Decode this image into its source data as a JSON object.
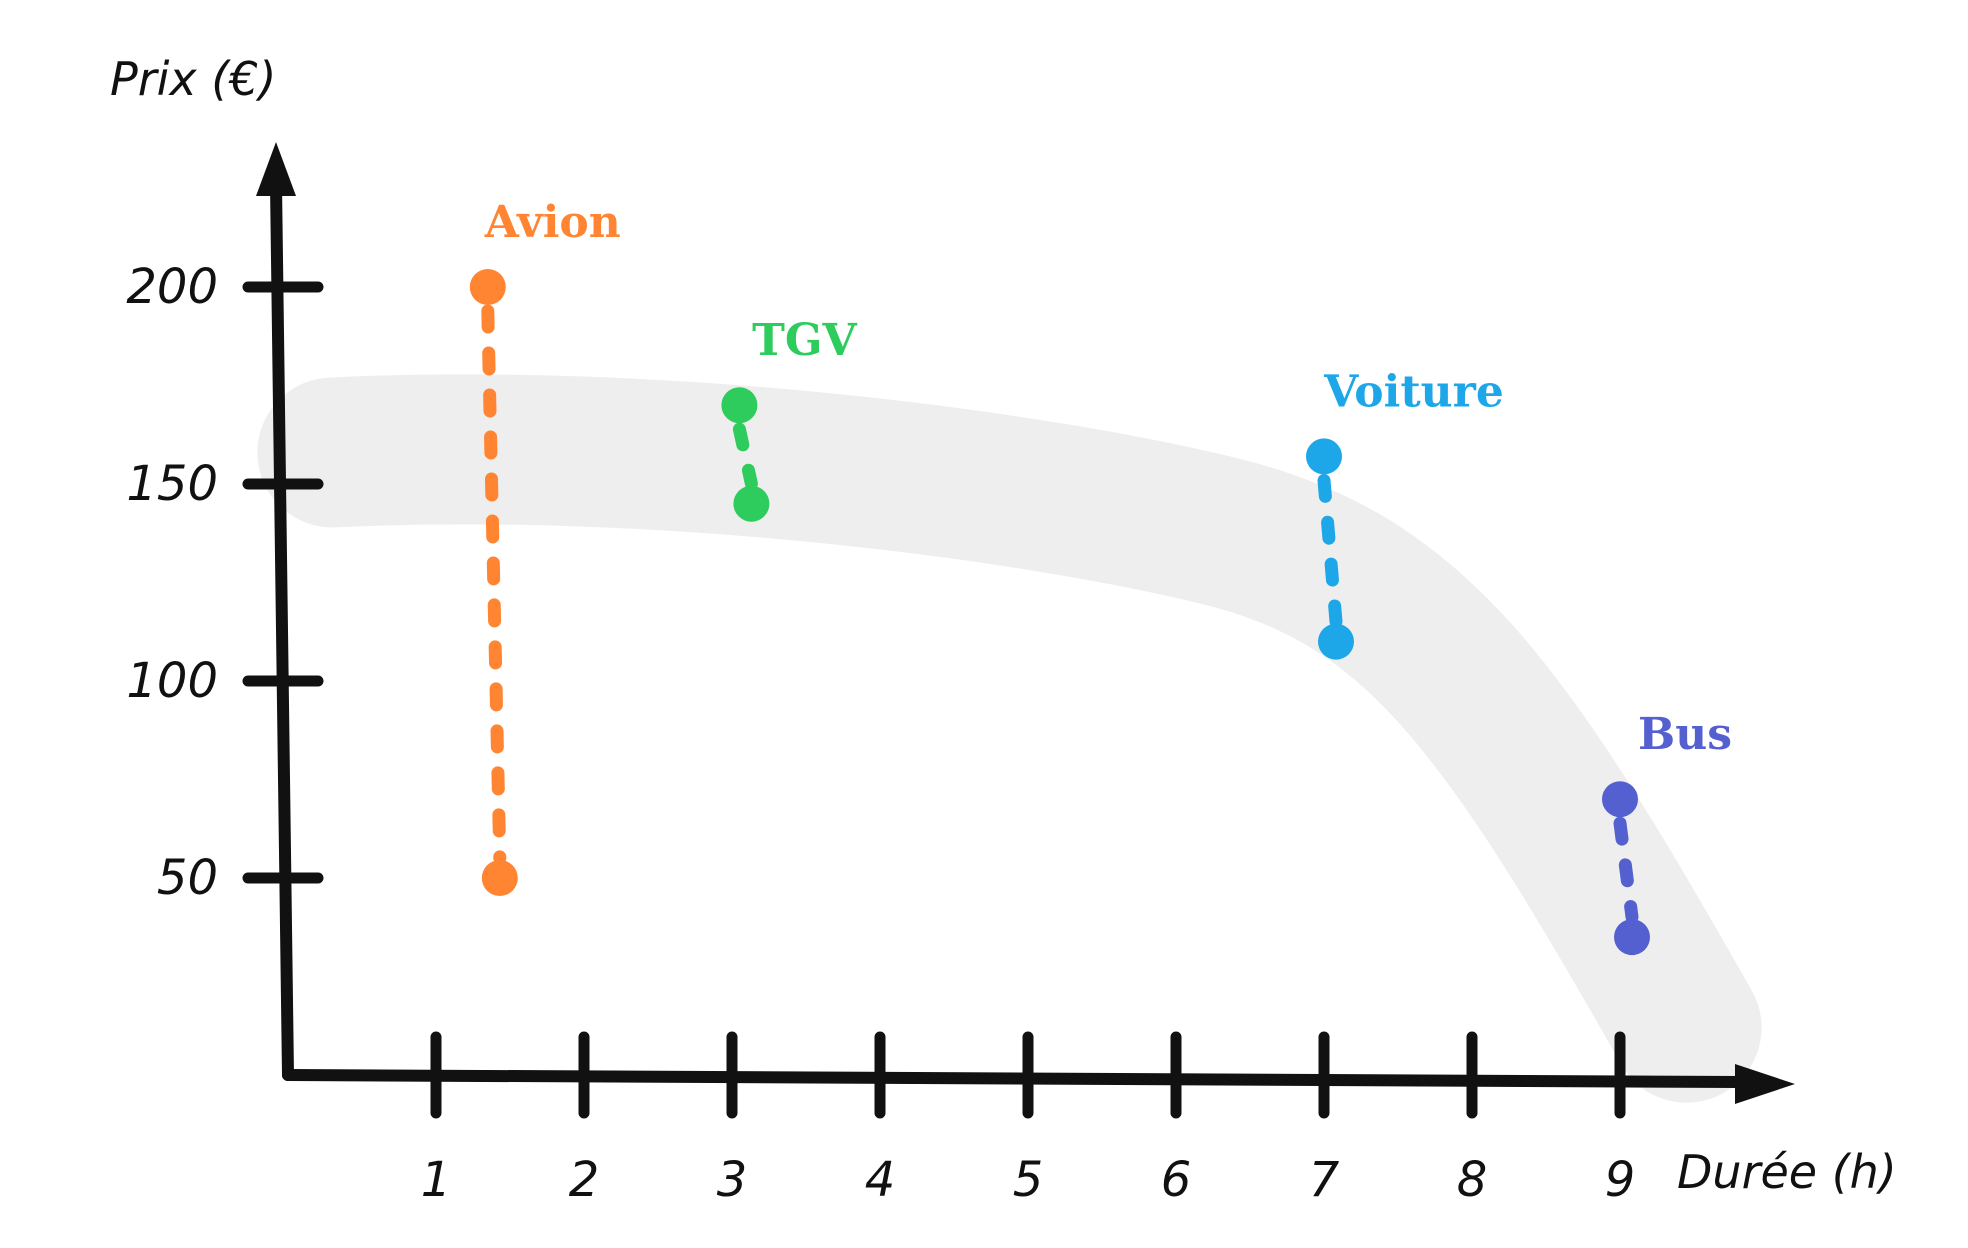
{
  "chart_data": {
    "type": "scatter",
    "xlabel": "Durée (h)",
    "ylabel": "Prix (€)",
    "x_ticks": [
      "1",
      "2",
      "3",
      "4",
      "5",
      "6",
      "7",
      "8",
      "9"
    ],
    "y_ticks": [
      "50",
      "100",
      "150",
      "200"
    ],
    "xlim": [
      0,
      9.9
    ],
    "ylim": [
      0,
      232
    ],
    "grid": false,
    "legend": "none",
    "series": [
      {
        "name": "Avion",
        "color": "#ff8533",
        "x": 1.35,
        "y_min": 50,
        "y_max": 200
      },
      {
        "name": "TGV",
        "color": "#2ecc5c",
        "x": 3.05,
        "y_min": 145,
        "y_max": 170
      },
      {
        "name": "Voiture",
        "color": "#1ea7e8",
        "x": 7.0,
        "y_min": 110,
        "y_max": 157
      },
      {
        "name": "Bus",
        "color": "#5560d0",
        "x": 9.0,
        "y_min": 35,
        "y_max": 70
      }
    ],
    "trend_band_color": "#eeeeee"
  }
}
